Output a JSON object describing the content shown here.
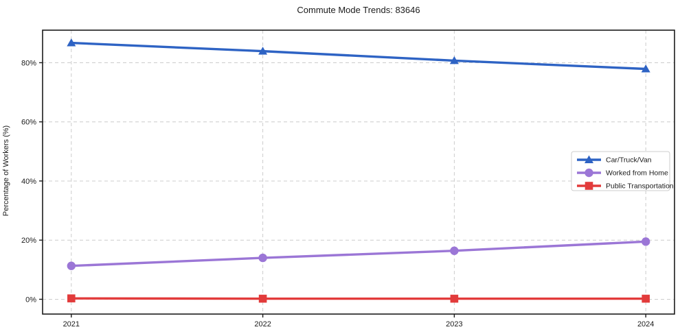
{
  "chart_data": {
    "type": "line",
    "title": "Commute Mode Trends: 83646",
    "xlabel": "",
    "ylabel": "Percentage of Workers (%)",
    "x": [
      2021,
      2022,
      2023,
      2024
    ],
    "x_tick_labels": [
      "2021",
      "2022",
      "2023",
      "2024"
    ],
    "series": [
      {
        "name": "Car/Truck/Van",
        "color": "#2e63c4",
        "marker": "triangle",
        "values": [
          86.7,
          83.9,
          80.7,
          77.9
        ]
      },
      {
        "name": "Worked from Home",
        "color": "#9b76d6",
        "marker": "circle",
        "values": [
          11.3,
          14.0,
          16.4,
          19.5
        ]
      },
      {
        "name": "Public Transportation",
        "color": "#e23b3b",
        "marker": "square",
        "values": [
          0.3,
          0.2,
          0.2,
          0.2
        ]
      }
    ],
    "yticks": [
      0,
      20,
      40,
      60,
      80
    ],
    "ytick_labels": [
      "0%",
      "20%",
      "40%",
      "60%",
      "80%"
    ],
    "ylim": [
      -5,
      91
    ],
    "xlim": [
      2020.85,
      2024.15
    ],
    "grid": true,
    "grid_style": "dashed",
    "grid_color": "#cccccc",
    "spine_color": "#1a1a1a",
    "legend_position": "center-right",
    "background": "#ffffff"
  }
}
